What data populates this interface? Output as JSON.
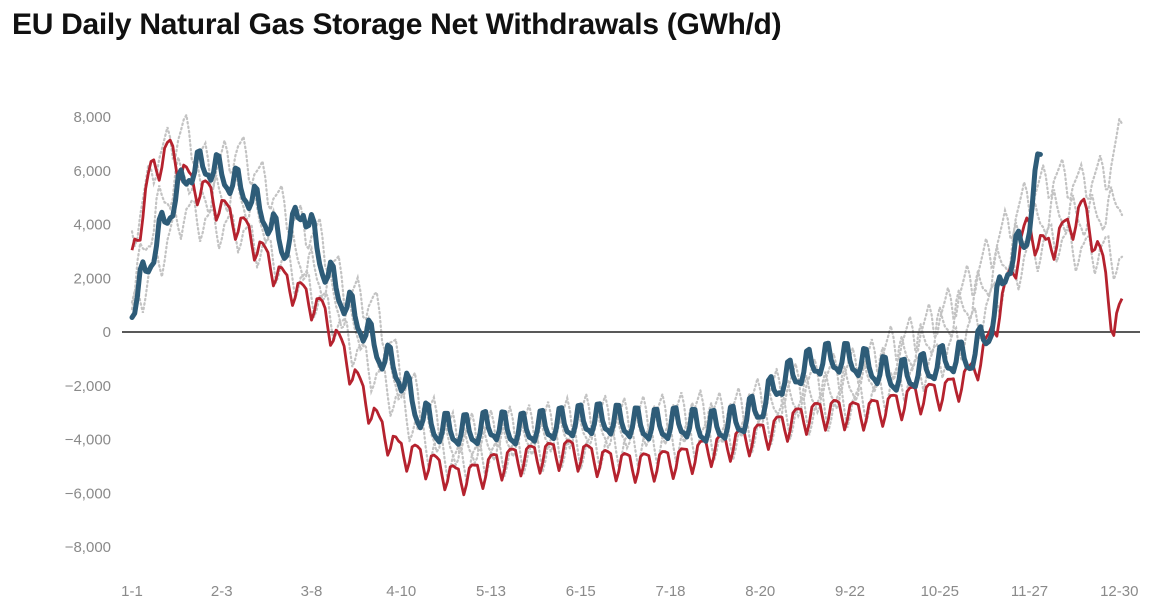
{
  "chart_data": {
    "type": "line",
    "title": "EU Daily Natural Gas Storage Net Withdrawals (GWh/d)",
    "xlabel": "",
    "ylabel": "",
    "ylim": [
      -9000,
      9500
    ],
    "xlim": [
      1,
      365
    ],
    "y_ticks": [
      8000,
      6000,
      4000,
      2000,
      0,
      -2000,
      -4000,
      -6000,
      -8000
    ],
    "y_tick_labels": [
      "8,000",
      "6,000",
      "4,000",
      "2,000",
      "0",
      "−2,000",
      "−4,000",
      "−6,000",
      "−8,000"
    ],
    "x_ticks": [
      1,
      34,
      67,
      100,
      133,
      166,
      199,
      232,
      265,
      298,
      331,
      364
    ],
    "x_tick_labels": [
      "1-1",
      "2-3",
      "3-8",
      "4-10",
      "5-13",
      "6-15",
      "7-18",
      "8-20",
      "9-22",
      "10-25",
      "11-27",
      "12-30"
    ],
    "zero_line": true,
    "grid": false,
    "legend": "none",
    "colors": {
      "historical": "#c3c3c3",
      "red_series": "#b5222e",
      "blue_series": "#2e5c78",
      "zero_line": "#222222"
    },
    "series": [
      {
        "style": "dotted-grey",
        "x": [
          1,
          10,
          20,
          30,
          40,
          50,
          60,
          70,
          80,
          90,
          100,
          110,
          120,
          130,
          140,
          150,
          160,
          170,
          180,
          190,
          200,
          210,
          220,
          230,
          240,
          250,
          260,
          270,
          280,
          290,
          300,
          310,
          320,
          330,
          340,
          350,
          360,
          365
        ],
        "values": [
          3500,
          6500,
          7500,
          6000,
          6800,
          5500,
          4200,
          3500,
          1500,
          1000,
          -1500,
          -3000,
          -3800,
          -3700,
          -3500,
          -3400,
          -3200,
          -3000,
          -3200,
          -3100,
          -3000,
          -2900,
          -3000,
          -2500,
          -2000,
          -1800,
          -1500,
          -1200,
          -500,
          0,
          800,
          2000,
          3500,
          5000,
          5800,
          5500,
          6000,
          7500
        ]
      },
      {
        "style": "dotted-grey",
        "x": [
          1,
          10,
          20,
          30,
          40,
          50,
          60,
          70,
          80,
          90,
          100,
          110,
          120,
          130,
          140,
          150,
          160,
          170,
          180,
          190,
          200,
          210,
          220,
          230,
          240,
          250,
          260,
          270,
          280,
          290,
          300,
          310,
          320,
          330,
          340,
          350,
          360,
          365
        ],
        "values": [
          1500,
          4500,
          6000,
          5000,
          5200,
          4000,
          3000,
          2000,
          500,
          -500,
          -2000,
          -3600,
          -4300,
          -4200,
          -4000,
          -3900,
          -3700,
          -3600,
          -3700,
          -3600,
          -3500,
          -3400,
          -3500,
          -3000,
          -2600,
          -2400,
          -2200,
          -1800,
          -1200,
          -600,
          300,
          1200,
          2500,
          3800,
          4500,
          4200,
          4500,
          5000
        ]
      },
      {
        "style": "dotted-grey",
        "x": [
          1,
          10,
          20,
          30,
          40,
          50,
          60,
          70,
          80,
          90,
          100,
          110,
          120,
          130,
          140,
          150,
          160,
          170,
          180,
          190,
          200,
          210,
          220,
          230,
          240,
          250,
          260,
          270,
          280,
          290,
          300,
          310,
          320,
          330,
          340,
          350,
          360,
          365
        ],
        "values": [
          800,
          2500,
          4500,
          4000,
          3800,
          3000,
          2200,
          1200,
          -200,
          -1500,
          -2800,
          -4200,
          -4800,
          -4600,
          -4500,
          -4400,
          -4200,
          -4300,
          -4200,
          -4100,
          -4000,
          -3900,
          -4000,
          -3600,
          -3200,
          -3000,
          -2800,
          -2600,
          -2000,
          -1500,
          -800,
          200,
          1500,
          2800,
          3500,
          3000,
          3000,
          2500
        ]
      },
      {
        "name": "",
        "style": "red",
        "x": [
          1,
          8,
          15,
          22,
          29,
          36,
          43,
          50,
          57,
          64,
          71,
          78,
          85,
          92,
          99,
          106,
          113,
          120,
          127,
          134,
          141,
          148,
          155,
          162,
          169,
          176,
          183,
          190,
          197,
          204,
          211,
          218,
          225,
          232,
          239,
          246,
          253,
          260,
          267,
          274,
          281,
          288,
          295,
          302,
          309,
          316,
          323,
          330,
          337,
          344,
          351,
          358,
          362,
          365
        ],
        "values": [
          2700,
          6000,
          6800,
          5600,
          5200,
          4400,
          3800,
          2800,
          1900,
          1400,
          800,
          -600,
          -2100,
          -3500,
          -4400,
          -4600,
          -5000,
          -5400,
          -5300,
          -4900,
          -4700,
          -4600,
          -4500,
          -4400,
          -4600,
          -4800,
          -4900,
          -4900,
          -4800,
          -4700,
          -4400,
          -4200,
          -4000,
          -3800,
          -3500,
          -3200,
          -3000,
          -2900,
          -3000,
          -2900,
          -2700,
          -2400,
          -2300,
          -2100,
          -1600,
          -400,
          1800,
          3900,
          3100,
          3800,
          4600,
          2500,
          200,
          900
        ]
      },
      {
        "name": "",
        "style": "blue",
        "x": [
          1,
          8,
          15,
          22,
          29,
          36,
          43,
          50,
          57,
          64,
          71,
          78,
          85,
          92,
          99,
          106,
          113,
          120,
          127,
          134,
          141,
          148,
          155,
          162,
          169,
          176,
          183,
          190,
          197,
          204,
          211,
          218,
          225,
          232,
          239,
          246,
          253,
          260,
          267,
          274,
          281,
          288,
          295,
          302,
          309,
          316,
          323,
          330,
          335
        ],
        "values": [
          900,
          2800,
          4600,
          6000,
          6200,
          5700,
          5200,
          4300,
          3100,
          4700,
          2500,
          1300,
          300,
          -800,
          -1500,
          -3000,
          -3600,
          -3700,
          -3700,
          -3500,
          -3700,
          -3600,
          -3500,
          -3400,
          -3300,
          -3300,
          -3400,
          -3500,
          -3500,
          -3400,
          -3600,
          -3500,
          -3300,
          -2800,
          -1900,
          -1500,
          -1100,
          -1000,
          -1100,
          -1400,
          -1700,
          -1600,
          -1300,
          -1000,
          -1000,
          0,
          2500,
          3600,
          6600
        ]
      }
    ]
  }
}
